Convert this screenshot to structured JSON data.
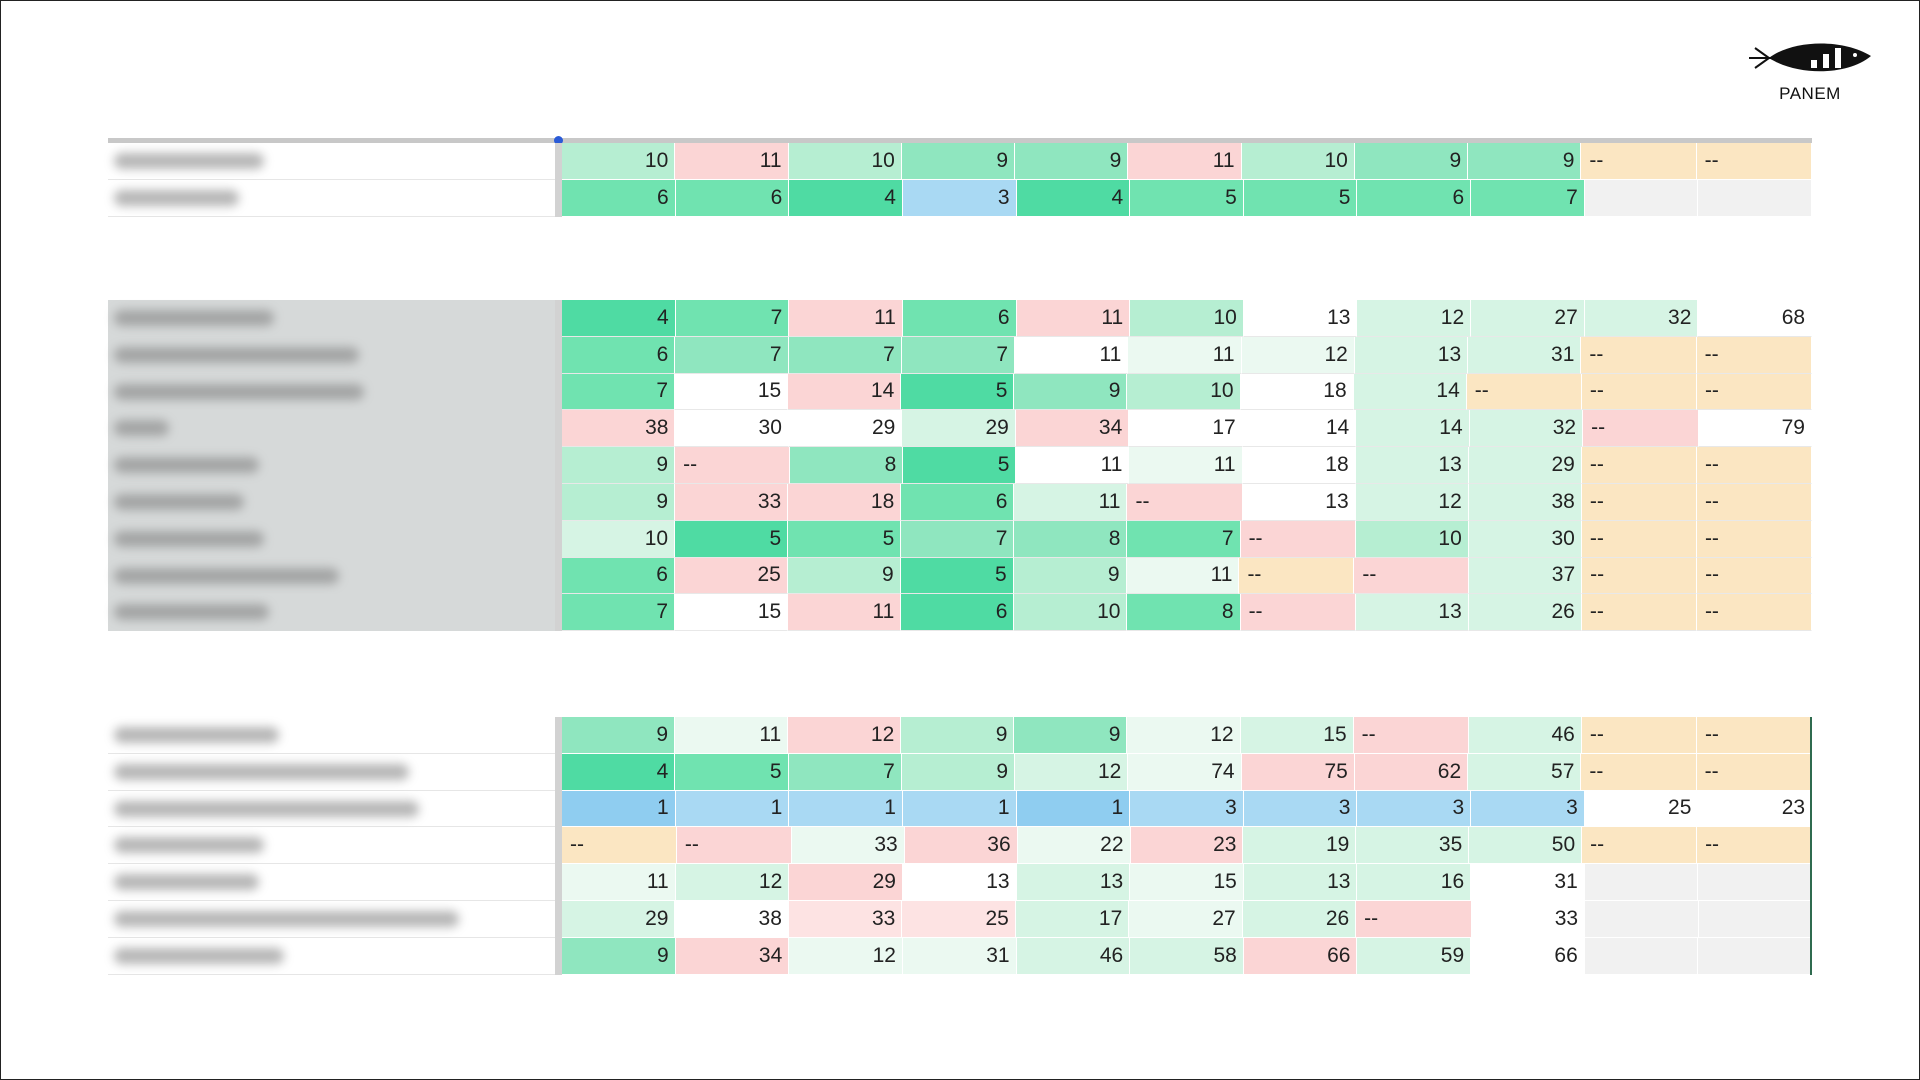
{
  "brand": {
    "name": "PANEM",
    "icon": "fish-chart-icon"
  },
  "colors": {
    "G1": "#4fdba3",
    "G2": "#70e3b0",
    "G3": "#8fe6bf",
    "G4": "#b6eed2",
    "G5": "#d6f4e4",
    "G6": "#ebf9f1",
    "P1": "#fbd5d5",
    "P2": "#fde3e3",
    "Y": "#fbe6c2",
    "B1": "#8fcdf0",
    "B2": "#a9d9f3",
    "E": "#f1f1f1",
    "W": "#ffffff"
  },
  "sections": [
    {
      "id": "s1",
      "rows": [
        {
          "cells": [
            [
              "10",
              "G4"
            ],
            [
              "11",
              "P1"
            ],
            [
              "10",
              "G4"
            ],
            [
              "9",
              "G3"
            ],
            [
              "9",
              "G3"
            ],
            [
              "11",
              "P1"
            ],
            [
              "10",
              "G4"
            ],
            [
              "9",
              "G3"
            ],
            [
              "9",
              "G3"
            ],
            [
              "--",
              "Y"
            ],
            [
              "--",
              "Y"
            ]
          ]
        },
        {
          "cells": [
            [
              "6",
              "G2"
            ],
            [
              "6",
              "G2"
            ],
            [
              "4",
              "G1"
            ],
            [
              "3",
              "B2"
            ],
            [
              "4",
              "G1"
            ],
            [
              "5",
              "G2"
            ],
            [
              "5",
              "G2"
            ],
            [
              "6",
              "G2"
            ],
            [
              "7",
              "G2"
            ],
            [
              "",
              "E"
            ],
            [
              "",
              "E"
            ]
          ]
        }
      ]
    },
    {
      "id": "s2",
      "rows": [
        {
          "cells": [
            [
              "4",
              "G1"
            ],
            [
              "7",
              "G2"
            ],
            [
              "11",
              "P1"
            ],
            [
              "6",
              "G2"
            ],
            [
              "11",
              "P1"
            ],
            [
              "10",
              "G4"
            ],
            [
              "13",
              "W"
            ],
            [
              "12",
              "G5"
            ],
            [
              "27",
              "G5"
            ],
            [
              "32",
              "G5"
            ],
            [
              "68",
              "W"
            ]
          ]
        },
        {
          "cells": [
            [
              "6",
              "G2"
            ],
            [
              "7",
              "G3"
            ],
            [
              "7",
              "G3"
            ],
            [
              "7",
              "G3"
            ],
            [
              "11",
              "W"
            ],
            [
              "11",
              "G6"
            ],
            [
              "12",
              "G6"
            ],
            [
              "13",
              "G5"
            ],
            [
              "31",
              "G5"
            ],
            [
              "--",
              "Y"
            ],
            [
              "--",
              "Y"
            ]
          ]
        },
        {
          "cells": [
            [
              "7",
              "G2"
            ],
            [
              "15",
              "W"
            ],
            [
              "14",
              "P1"
            ],
            [
              "5",
              "G1"
            ],
            [
              "9",
              "G3"
            ],
            [
              "10",
              "G4"
            ],
            [
              "18",
              "W"
            ],
            [
              "14",
              "G5"
            ],
            [
              "--",
              "Y"
            ],
            [
              "--",
              "Y"
            ],
            [
              "--",
              "Y"
            ]
          ]
        },
        {
          "cells": [
            [
              "38",
              "P1"
            ],
            [
              "30",
              "W"
            ],
            [
              "29",
              "W"
            ],
            [
              "29",
              "G5"
            ],
            [
              "34",
              "P1"
            ],
            [
              "17",
              "W"
            ],
            [
              "14",
              "W"
            ],
            [
              "14",
              "G5"
            ],
            [
              "32",
              "G5"
            ],
            [
              "--",
              "P1"
            ],
            [
              "79",
              "W"
            ]
          ]
        },
        {
          "cells": [
            [
              "9",
              "G4"
            ],
            [
              "--",
              "P1"
            ],
            [
              "8",
              "G3"
            ],
            [
              "5",
              "G1"
            ],
            [
              "11",
              "W"
            ],
            [
              "11",
              "G6"
            ],
            [
              "18",
              "W"
            ],
            [
              "13",
              "G5"
            ],
            [
              "29",
              "G5"
            ],
            [
              "--",
              "Y"
            ],
            [
              "--",
              "Y"
            ]
          ]
        },
        {
          "cells": [
            [
              "9",
              "G4"
            ],
            [
              "33",
              "P1"
            ],
            [
              "18",
              "P1"
            ],
            [
              "6",
              "G2"
            ],
            [
              "11",
              "G5"
            ],
            [
              "--",
              "P1"
            ],
            [
              "13",
              "W"
            ],
            [
              "12",
              "G5"
            ],
            [
              "38",
              "G5"
            ],
            [
              "--",
              "Y"
            ],
            [
              "--",
              "Y"
            ]
          ]
        },
        {
          "cells": [
            [
              "10",
              "G5"
            ],
            [
              "5",
              "G1"
            ],
            [
              "5",
              "G2"
            ],
            [
              "7",
              "G3"
            ],
            [
              "8",
              "G3"
            ],
            [
              "7",
              "G2"
            ],
            [
              "--",
              "P1"
            ],
            [
              "10",
              "G4"
            ],
            [
              "30",
              "G5"
            ],
            [
              "--",
              "Y"
            ],
            [
              "--",
              "Y"
            ]
          ]
        },
        {
          "cells": [
            [
              "6",
              "G2"
            ],
            [
              "25",
              "P1"
            ],
            [
              "9",
              "G4"
            ],
            [
              "5",
              "G1"
            ],
            [
              "9",
              "G4"
            ],
            [
              "11",
              "G6"
            ],
            [
              "--",
              "Y"
            ],
            [
              "--",
              "P1"
            ],
            [
              "37",
              "G5"
            ],
            [
              "--",
              "Y"
            ],
            [
              "--",
              "Y"
            ]
          ]
        },
        {
          "cells": [
            [
              "7",
              "G2"
            ],
            [
              "15",
              "W"
            ],
            [
              "11",
              "P1"
            ],
            [
              "6",
              "G1"
            ],
            [
              "10",
              "G4"
            ],
            [
              "8",
              "G2"
            ],
            [
              "--",
              "P1"
            ],
            [
              "13",
              "G5"
            ],
            [
              "26",
              "G5"
            ],
            [
              "--",
              "Y"
            ],
            [
              "--",
              "Y"
            ]
          ]
        }
      ]
    },
    {
      "id": "s3",
      "rows": [
        {
          "cells": [
            [
              "9",
              "G3"
            ],
            [
              "11",
              "G6"
            ],
            [
              "12",
              "P1"
            ],
            [
              "9",
              "G4"
            ],
            [
              "9",
              "G3"
            ],
            [
              "12",
              "G6"
            ],
            [
              "15",
              "G5"
            ],
            [
              "--",
              "P1"
            ],
            [
              "46",
              "G5"
            ],
            [
              "--",
              "Y"
            ],
            [
              "--",
              "Y"
            ]
          ]
        },
        {
          "cells": [
            [
              "4",
              "G1"
            ],
            [
              "5",
              "G2"
            ],
            [
              "7",
              "G3"
            ],
            [
              "9",
              "G4"
            ],
            [
              "12",
              "G5"
            ],
            [
              "74",
              "G6"
            ],
            [
              "75",
              "P1"
            ],
            [
              "62",
              "P1"
            ],
            [
              "57",
              "G5"
            ],
            [
              "--",
              "Y"
            ],
            [
              "--",
              "Y"
            ]
          ]
        },
        {
          "cells": [
            [
              "1",
              "B1"
            ],
            [
              "1",
              "B2"
            ],
            [
              "1",
              "B2"
            ],
            [
              "1",
              "B2"
            ],
            [
              "1",
              "B1"
            ],
            [
              "3",
              "B2"
            ],
            [
              "3",
              "B2"
            ],
            [
              "3",
              "B2"
            ],
            [
              "3",
              "B2"
            ],
            [
              "25",
              "W"
            ],
            [
              "23",
              "W"
            ]
          ]
        },
        {
          "cells": [
            [
              "--",
              "Y"
            ],
            [
              "--",
              "P1"
            ],
            [
              "33",
              "G6"
            ],
            [
              "36",
              "P1"
            ],
            [
              "22",
              "G6"
            ],
            [
              "23",
              "P1"
            ],
            [
              "19",
              "G5"
            ],
            [
              "35",
              "G5"
            ],
            [
              "50",
              "G5"
            ],
            [
              "--",
              "Y"
            ],
            [
              "--",
              "Y"
            ]
          ]
        },
        {
          "cells": [
            [
              "11",
              "G6"
            ],
            [
              "12",
              "G5"
            ],
            [
              "29",
              "P1"
            ],
            [
              "13",
              "W"
            ],
            [
              "13",
              "G5"
            ],
            [
              "15",
              "G6"
            ],
            [
              "13",
              "G5"
            ],
            [
              "16",
              "G5"
            ],
            [
              "31",
              "W"
            ],
            [
              "",
              "E"
            ],
            [
              "",
              "E"
            ]
          ]
        },
        {
          "cells": [
            [
              "29",
              "G5"
            ],
            [
              "38",
              "W"
            ],
            [
              "33",
              "P2"
            ],
            [
              "25",
              "P2"
            ],
            [
              "17",
              "G5"
            ],
            [
              "27",
              "G6"
            ],
            [
              "26",
              "G5"
            ],
            [
              "--",
              "P1"
            ],
            [
              "33",
              "W"
            ],
            [
              "",
              "E"
            ],
            [
              "",
              "E"
            ]
          ]
        },
        {
          "cells": [
            [
              "9",
              "G3"
            ],
            [
              "34",
              "P1"
            ],
            [
              "12",
              "G6"
            ],
            [
              "31",
              "G6"
            ],
            [
              "46",
              "G5"
            ],
            [
              "58",
              "G5"
            ],
            [
              "66",
              "P1"
            ],
            [
              "59",
              "G5"
            ],
            [
              "66",
              "W"
            ],
            [
              "",
              "E"
            ],
            [
              "",
              "E"
            ]
          ]
        }
      ]
    }
  ]
}
